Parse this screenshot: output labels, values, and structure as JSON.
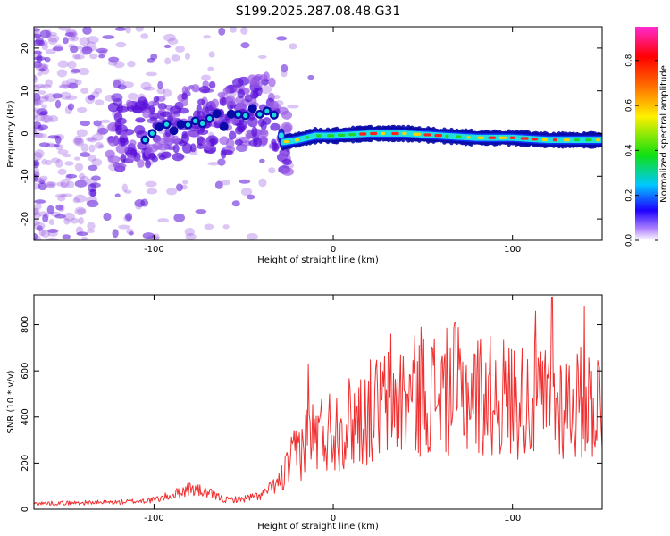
{
  "title": "S199.2025.287.08.48.G31",
  "colors": {
    "snr_line": "#f03030",
    "spectrum_weak": "#9a5ce6",
    "spectrum_mid": "#5a10d8",
    "track_core": "#0a0aa8"
  },
  "chart_data": [
    {
      "type": "heatmap",
      "name": "spectrogram",
      "xlabel": "Height of straight line (km)",
      "ylabel": "Frequency (Hz)",
      "xlim": [
        -167,
        150
      ],
      "ylim": [
        -25,
        25
      ],
      "xticks": [
        -100,
        0,
        100
      ],
      "yticks": [
        -20,
        -10,
        0,
        10,
        20
      ],
      "xtick_labels": [
        "-100",
        "0",
        "100"
      ],
      "ytick_labels": [
        "-20",
        "-10",
        "0",
        "10",
        "20"
      ],
      "track": {
        "x": [
          -110,
          -100,
          -90,
          -80,
          -70,
          -60,
          -50,
          -40,
          -32,
          -28,
          -20,
          -10,
          0,
          20,
          40,
          60,
          80,
          100,
          120,
          150
        ],
        "y": [
          -0.5,
          0,
          1,
          3,
          4,
          3,
          5,
          6,
          4,
          -2,
          -1.5,
          -0.5,
          -0.5,
          0,
          0,
          -0.5,
          -1,
          -1,
          -1.5,
          -1.5
        ]
      },
      "colorbar": {
        "label": "Normalized spectral amplitude",
        "range": [
          0,
          0.95
        ],
        "ticks": [
          0,
          0.2,
          0.4,
          0.6,
          0.8
        ],
        "tick_labels": [
          "0.0",
          "0.2",
          "0.4",
          "0.6",
          "0.8"
        ]
      }
    },
    {
      "type": "line",
      "name": "snr",
      "xlabel": "Height of straight line (km)",
      "ylabel": "SNR (10 * v/v)",
      "xlim": [
        -167,
        150
      ],
      "ylim": [
        0,
        930
      ],
      "xticks": [
        -100,
        0,
        100
      ],
      "yticks": [
        0,
        200,
        400,
        600,
        800
      ],
      "xtick_labels": [
        "-100",
        "0",
        "100"
      ],
      "ytick_labels": [
        "0",
        "200",
        "400",
        "600",
        "800"
      ],
      "envelope": {
        "x": [
          -167,
          -120,
          -100,
          -90,
          -80,
          -70,
          -60,
          -50,
          -40,
          -30,
          -25,
          -20,
          -15,
          -10,
          0,
          10,
          20,
          30,
          40,
          50,
          60,
          70,
          80,
          90,
          100,
          110,
          120,
          130,
          140,
          150
        ],
        "y": [
          25,
          30,
          40,
          60,
          90,
          70,
          40,
          45,
          60,
          120,
          180,
          250,
          300,
          320,
          350,
          380,
          420,
          460,
          480,
          500,
          510,
          510,
          500,
          490,
          480,
          470,
          460,
          460,
          460,
          470
        ]
      },
      "peaks": [
        {
          "x": -14,
          "y": 630
        },
        {
          "x": 32,
          "y": 760
        },
        {
          "x": 49,
          "y": 790
        },
        {
          "x": 68,
          "y": 810
        },
        {
          "x": 113,
          "y": 860
        },
        {
          "x": 122,
          "y": 920
        },
        {
          "x": 140,
          "y": 880
        }
      ]
    }
  ]
}
